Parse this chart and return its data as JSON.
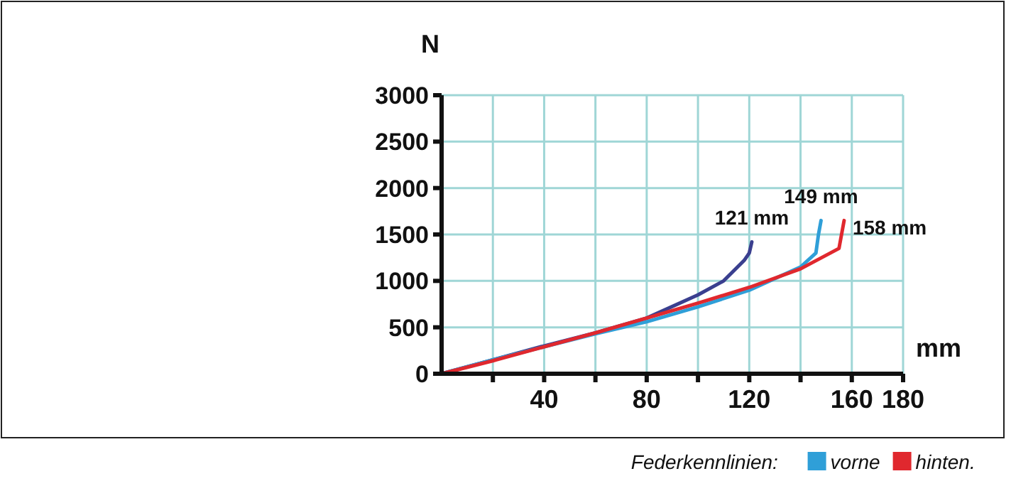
{
  "chart_data": {
    "type": "line",
    "xlabel": "mm",
    "ylabel": "N",
    "xlim": [
      0,
      180
    ],
    "ylim": [
      0,
      3000
    ],
    "xticks": [
      {
        "value": 20,
        "label": null
      },
      40,
      {
        "value": 60,
        "label": null
      },
      80,
      {
        "value": 100,
        "label": null
      },
      120,
      {
        "value": 140,
        "label": null
      },
      160,
      180
    ],
    "yticks": [
      0,
      500,
      1000,
      1500,
      2000,
      2500,
      3000
    ],
    "grid": true,
    "legend": "bottom right",
    "legend_title": "Federkennlinien:",
    "series": [
      {
        "color": "#3a3f8f",
        "x": [
          0,
          20,
          40,
          60,
          80,
          100,
          110,
          118,
          120,
          121
        ],
        "values": [
          0,
          150,
          300,
          440,
          600,
          850,
          1000,
          1220,
          1300,
          1420
        ]
      },
      {
        "name": "vorne",
        "color": "#2f9fd8",
        "x": [
          0,
          20,
          40,
          60,
          80,
          100,
          120,
          140,
          146,
          147,
          148
        ],
        "values": [
          0,
          150,
          290,
          430,
          560,
          720,
          900,
          1150,
          1300,
          1500,
          1650
        ]
      },
      {
        "name": "hinten.",
        "color": "#e0282e",
        "x": [
          0,
          20,
          40,
          60,
          80,
          100,
          120,
          140,
          155,
          157
        ],
        "values": [
          0,
          140,
          290,
          440,
          600,
          760,
          930,
          1130,
          1350,
          1650
        ]
      }
    ],
    "annotations": [
      {
        "text": "121 mm",
        "x": 121,
        "y": 1420
      },
      {
        "text": "149 mm",
        "x": 148,
        "y": 1650
      },
      {
        "text": "158 mm",
        "x": 157,
        "y": 1650
      }
    ]
  }
}
